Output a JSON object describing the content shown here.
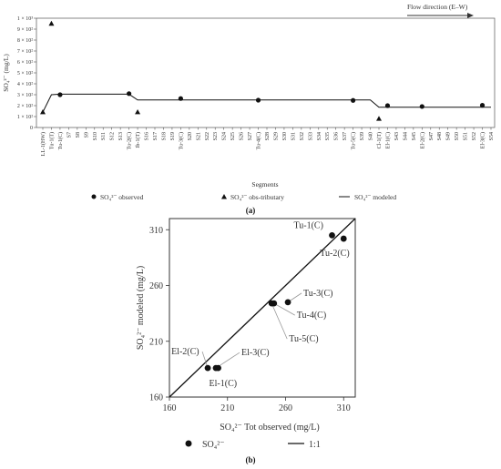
{
  "panel_a": {
    "panel_label": "(a)",
    "flow_label": "Flow direction (E–W)",
    "legend": {
      "observed": "SO₄²⁻ observed",
      "tributary": "SO₄²⁻ obs-tributary",
      "modeled": "SO₄²⁻ modeled"
    }
  },
  "panel_b": {
    "panel_label": "(b)",
    "legend": {
      "points": "SO₄²⁻",
      "line": "1:1"
    }
  },
  "chart_data": [
    {
      "type": "line",
      "xlabel": "Segments",
      "ylabel": "SO₄²⁻ (mg/L)",
      "ylim": [
        0,
        1000
      ],
      "yticks": [
        "0",
        "1 × 10²",
        "2 × 10²",
        "3 × 10²",
        "4 × 10²",
        "5 × 10²",
        "6 × 10²",
        "7 × 10²",
        "8 × 10²",
        "9 × 10²",
        "1 × 10³"
      ],
      "categories": [
        "LL-1(HW)",
        "Tu-1(T)",
        "Tu-1(C)",
        "S7",
        "S8",
        "S9",
        "S10",
        "S11",
        "S12",
        "S13",
        "Tu-2(C)",
        "Ib-1(T)",
        "S16",
        "S17",
        "S18",
        "S19",
        "Tu-3(C)",
        "S20",
        "S21",
        "S22",
        "S23",
        "S24",
        "S25",
        "S26",
        "S27",
        "Tu-4(C)",
        "S28",
        "S29",
        "S30",
        "S31",
        "S32",
        "S33",
        "S34",
        "S35",
        "S36",
        "S37",
        "Tu-5(C)",
        "S39",
        "S40",
        "Cl-1(T)",
        "El-1(C)",
        "S43",
        "S44",
        "S45",
        "El-2(C)",
        "S47",
        "S48",
        "S49",
        "S50",
        "S51",
        "S52",
        "El-3(C)",
        "S54"
      ],
      "series": [
        {
          "name": "SO₄²⁻ observed",
          "points": [
            {
              "x": "Tu-1(C)",
              "y": 300
            },
            {
              "x": "Tu-2(C)",
              "y": 310
            },
            {
              "x": "Tu-3(C)",
              "y": 265
            },
            {
              "x": "Tu-4(C)",
              "y": 250
            },
            {
              "x": "Tu-5(C)",
              "y": 248
            },
            {
              "x": "El-1(C)",
              "y": 200
            },
            {
              "x": "El-2(C)",
              "y": 192
            },
            {
              "x": "El-3(C)",
              "y": 203
            }
          ]
        },
        {
          "name": "SO₄²⁻ obs-tributary",
          "points": [
            {
              "x": "LL-1(HW)",
              "y": 140
            },
            {
              "x": "Tu-1(T)",
              "y": 950
            },
            {
              "x": "Ib-1(T)",
              "y": 140
            },
            {
              "x": "Cl-1(T)",
              "y": 80
            }
          ]
        },
        {
          "name": "SO₄²⁻ modeled",
          "points": [
            {
              "x": "LL-1(HW)",
              "y": 140
            },
            {
              "x": "Tu-1(T)",
              "y": 300
            },
            {
              "x": "Tu-1(C)",
              "y": 305
            },
            {
              "x": "S12",
              "y": 305
            },
            {
              "x": "Tu-2(C)",
              "y": 305
            },
            {
              "x": "Ib-1(T)",
              "y": 252
            },
            {
              "x": "Tu-5(C)",
              "y": 252
            },
            {
              "x": "S39",
              "y": 252
            },
            {
              "x": "S40",
              "y": 252
            },
            {
              "x": "Cl-1(T)",
              "y": 185
            },
            {
              "x": "S54",
              "y": 185
            }
          ]
        }
      ]
    },
    {
      "type": "scatter",
      "xlabel": "SO₄²⁻ Tot observed (mg/L)",
      "ylabel": "SO₄²⁻ modeled (mg/L)",
      "xlim": [
        160,
        320
      ],
      "ylim": [
        160,
        320
      ],
      "xticks": [
        160,
        210,
        260,
        310
      ],
      "yticks": [
        160,
        210,
        260,
        310
      ],
      "series": [
        {
          "name": "SO₄²⁻",
          "points": [
            {
              "label": "Tu-1(C)",
              "x": 300,
              "y": 305
            },
            {
              "label": "Tu-2(C)",
              "x": 310,
              "y": 302
            },
            {
              "label": "Tu-3(C)",
              "x": 262,
              "y": 245
            },
            {
              "label": "Tu-4(C)",
              "x": 250,
              "y": 244
            },
            {
              "label": "Tu-5(C)",
              "x": 248,
              "y": 244
            },
            {
              "label": "El-1(C)",
              "x": 202,
              "y": 186
            },
            {
              "label": "El-2(C)",
              "x": 193,
              "y": 186
            },
            {
              "label": "El-3(C)",
              "x": 200,
              "y": 186
            }
          ]
        },
        {
          "name": "1:1",
          "points": [
            {
              "x": 160,
              "y": 160
            },
            {
              "x": 320,
              "y": 320
            }
          ]
        }
      ]
    }
  ]
}
